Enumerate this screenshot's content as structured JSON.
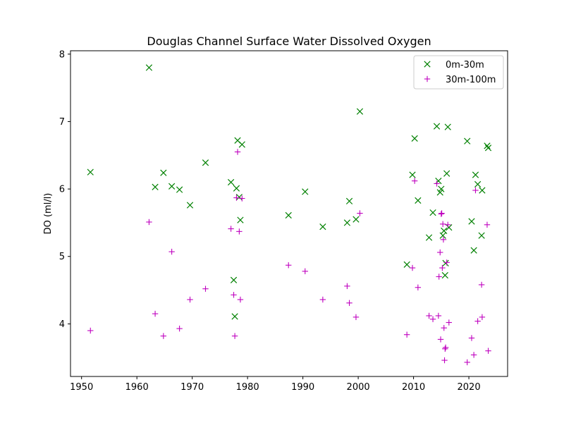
{
  "chart_data": {
    "type": "scatter",
    "title": "Douglas Channel Surface Water Dissolved Oxygen",
    "xlabel": "",
    "ylabel": "DO (ml/l)",
    "xlim": [
      1948,
      2027
    ],
    "ylim": [
      3.22,
      8.05
    ],
    "xticks": [
      1950,
      1960,
      1970,
      1980,
      1990,
      2000,
      2010,
      2020
    ],
    "yticks": [
      4,
      5,
      6,
      7,
      8
    ],
    "grid": false,
    "legend_position": "top-right",
    "series": [
      {
        "name": "0m-30m",
        "marker": "x",
        "color": "#008000",
        "points": [
          [
            1951.6,
            6.25
          ],
          [
            1962.2,
            7.8
          ],
          [
            1963.3,
            6.03
          ],
          [
            1964.8,
            6.24
          ],
          [
            1966.3,
            6.04
          ],
          [
            1967.7,
            5.99
          ],
          [
            1969.6,
            5.76
          ],
          [
            1972.4,
            6.39
          ],
          [
            1977.0,
            6.1
          ],
          [
            1977.5,
            4.65
          ],
          [
            1977.7,
            4.11
          ],
          [
            1978.0,
            6.01
          ],
          [
            1978.2,
            6.72
          ],
          [
            1978.5,
            5.88
          ],
          [
            1978.7,
            5.54
          ],
          [
            1979.0,
            6.66
          ],
          [
            1987.4,
            5.61
          ],
          [
            1990.4,
            5.96
          ],
          [
            1993.6,
            5.44
          ],
          [
            1998.0,
            5.5
          ],
          [
            1998.4,
            5.82
          ],
          [
            1999.6,
            5.55
          ],
          [
            2000.3,
            7.15
          ],
          [
            2008.8,
            4.88
          ],
          [
            2009.8,
            6.21
          ],
          [
            2010.2,
            6.75
          ],
          [
            2010.8,
            5.83
          ],
          [
            2012.8,
            5.28
          ],
          [
            2013.5,
            5.65
          ],
          [
            2014.2,
            6.93
          ],
          [
            2014.5,
            6.12
          ],
          [
            2014.8,
            5.95
          ],
          [
            2015.0,
            6.0
          ],
          [
            2015.3,
            5.31
          ],
          [
            2015.5,
            5.38
          ],
          [
            2015.7,
            4.72
          ],
          [
            2015.8,
            4.9
          ],
          [
            2016.0,
            6.23
          ],
          [
            2016.2,
            6.92
          ],
          [
            2016.4,
            5.43
          ],
          [
            2019.7,
            6.71
          ],
          [
            2020.5,
            5.52
          ],
          [
            2020.9,
            5.09
          ],
          [
            2021.2,
            6.21
          ],
          [
            2021.6,
            6.07
          ],
          [
            2022.3,
            5.31
          ],
          [
            2022.4,
            5.98
          ],
          [
            2023.3,
            6.64
          ],
          [
            2023.5,
            6.61
          ]
        ]
      },
      {
        "name": "30m-100m",
        "marker": "+",
        "color": "#bf00bf",
        "points": [
          [
            1951.6,
            3.9
          ],
          [
            1962.2,
            5.51
          ],
          [
            1963.3,
            4.15
          ],
          [
            1964.8,
            3.82
          ],
          [
            1966.3,
            5.07
          ],
          [
            1967.7,
            3.93
          ],
          [
            1969.6,
            4.36
          ],
          [
            1972.4,
            4.52
          ],
          [
            1977.0,
            5.41
          ],
          [
            1977.5,
            4.43
          ],
          [
            1977.7,
            3.82
          ],
          [
            1978.0,
            5.87
          ],
          [
            1978.2,
            6.55
          ],
          [
            1978.5,
            5.37
          ],
          [
            1978.7,
            4.36
          ],
          [
            1979.0,
            5.86
          ],
          [
            1987.4,
            4.87
          ],
          [
            1990.4,
            4.78
          ],
          [
            1993.6,
            4.36
          ],
          [
            1998.0,
            4.56
          ],
          [
            1998.4,
            4.31
          ],
          [
            1999.6,
            4.1
          ],
          [
            2000.3,
            5.64
          ],
          [
            2008.8,
            3.84
          ],
          [
            2009.8,
            4.83
          ],
          [
            2010.2,
            6.12
          ],
          [
            2010.8,
            4.54
          ],
          [
            2012.8,
            4.12
          ],
          [
            2013.5,
            4.07
          ],
          [
            2014.2,
            6.08
          ],
          [
            2014.5,
            4.12
          ],
          [
            2014.6,
            4.7
          ],
          [
            2014.8,
            5.06
          ],
          [
            2014.9,
            3.77
          ],
          [
            2015.0,
            5.63
          ],
          [
            2015.1,
            5.64
          ],
          [
            2015.2,
            4.83
          ],
          [
            2015.3,
            5.48
          ],
          [
            2015.4,
            5.25
          ],
          [
            2015.5,
            3.94
          ],
          [
            2015.6,
            3.46
          ],
          [
            2015.7,
            3.63
          ],
          [
            2015.8,
            3.65
          ],
          [
            2016.0,
            4.91
          ],
          [
            2016.2,
            5.47
          ],
          [
            2016.4,
            4.02
          ],
          [
            2019.7,
            3.43
          ],
          [
            2020.5,
            3.79
          ],
          [
            2020.9,
            3.54
          ],
          [
            2021.2,
            5.98
          ],
          [
            2021.6,
            4.04
          ],
          [
            2022.3,
            4.58
          ],
          [
            2022.4,
            4.1
          ],
          [
            2023.3,
            5.47
          ],
          [
            2023.5,
            3.6
          ]
        ]
      }
    ]
  }
}
